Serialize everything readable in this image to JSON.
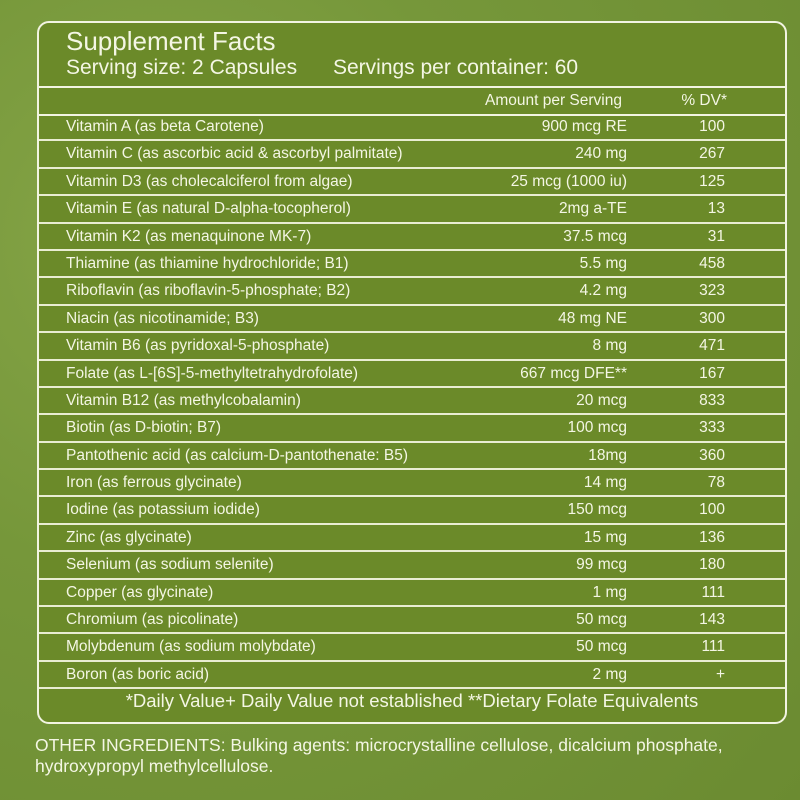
{
  "panel": {
    "title": "Supplement Facts",
    "serving_size": "Serving size: 2 Capsules",
    "servings_per_container": "Servings per container: 60",
    "col_amount": "Amount per Serving",
    "col_dv": "% DV*",
    "rows": [
      {
        "name": "Vitamin A (as beta Carotene)",
        "amount": "900 mcg RE",
        "dv": "100"
      },
      {
        "name": "Vitamin C (as ascorbic acid & ascorbyl palmitate)",
        "amount": "240 mg",
        "dv": "267"
      },
      {
        "name": "Vitamin D3 (as cholecalciferol from algae)",
        "amount": "25 mcg (1000 iu)",
        "dv": "125"
      },
      {
        "name": "Vitamin E (as natural D-alpha-tocopherol)",
        "amount": "2mg a-TE",
        "dv": "13"
      },
      {
        "name": "Vitamin K2 (as menaquinone MK-7)",
        "amount": "37.5 mcg",
        "dv": "31"
      },
      {
        "name": "Thiamine (as thiamine hydrochloride; B1)",
        "amount": "5.5 mg",
        "dv": "458"
      },
      {
        "name": "Riboflavin (as riboflavin-5-phosphate; B2)",
        "amount": "4.2 mg",
        "dv": "323"
      },
      {
        "name": "Niacin (as nicotinamide; B3)",
        "amount": "48 mg NE",
        "dv": "300"
      },
      {
        "name": "Vitamin B6 (as pyridoxal-5-phosphate)",
        "amount": "8 mg",
        "dv": "471"
      },
      {
        "name": "Folate (as L-[6S]-5-methyltetrahydrofolate)",
        "amount": "667 mcg DFE**",
        "dv": "167"
      },
      {
        "name": "Vitamin B12 (as methylcobalamin)",
        "amount": "20 mcg",
        "dv": "833"
      },
      {
        "name": "Biotin (as D-biotin; B7)",
        "amount": "100 mcg",
        "dv": "333"
      },
      {
        "name": "Pantothenic acid (as calcium-D-pantothenate: B5)",
        "amount": "18mg",
        "dv": "360"
      },
      {
        "name": "Iron (as ferrous glycinate)",
        "amount": "14 mg",
        "dv": "78"
      },
      {
        "name": "Iodine (as potassium iodide)",
        "amount": "150 mcg",
        "dv": "100"
      },
      {
        "name": "Zinc (as glycinate)",
        "amount": "15 mg",
        "dv": "136"
      },
      {
        "name": "Selenium (as sodium selenite)",
        "amount": "99 mcg",
        "dv": "180"
      },
      {
        "name": "Copper (as glycinate)",
        "amount": "1 mg",
        "dv": "111"
      },
      {
        "name": "Chromium (as picolinate)",
        "amount": "50 mcg",
        "dv": "143"
      },
      {
        "name": "Molybdenum (as sodium molybdate)",
        "amount": "50 mcg",
        "dv": "111"
      },
      {
        "name": "Boron (as boric acid)",
        "amount": "2 mg",
        "dv": "+"
      }
    ],
    "footnote": "*Daily Value+ Daily Value not established **Dietary Folate Equivalents"
  },
  "other_ingredients": "OTHER INGREDIENTS: Bulking agents: microcrystalline cellulose, dicalcium phosphate, hydroxypropyl methylcellulose.",
  "colors": {
    "background": "#76973a",
    "panel": "#6b8a29",
    "text": "#f4f6e4"
  }
}
